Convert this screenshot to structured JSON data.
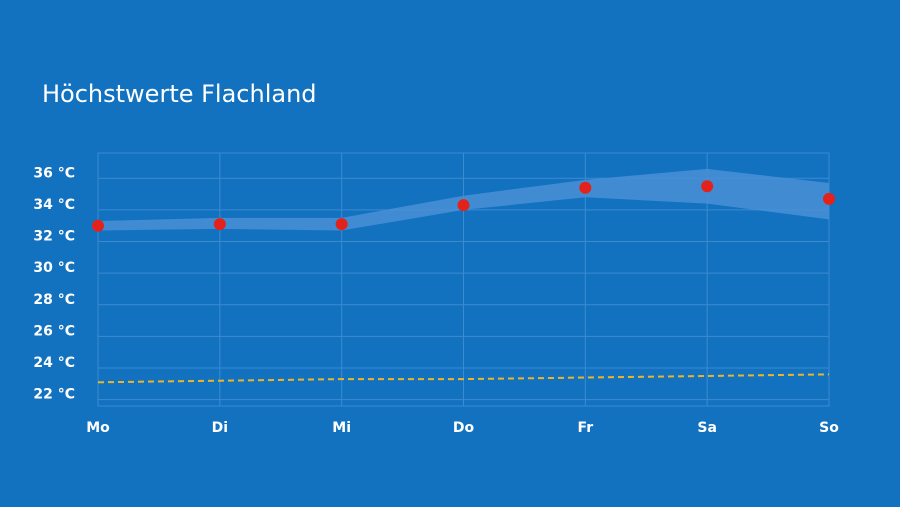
{
  "chart_data": {
    "type": "line",
    "title": "Höchstwerte Flachland",
    "categories": [
      "Mo",
      "Di",
      "Mi",
      "Do",
      "Fr",
      "Sa",
      "So"
    ],
    "ylim": [
      21.6,
      37.6
    ],
    "yticks": [
      {
        "value": 22,
        "label": "22 °C"
      },
      {
        "value": 24,
        "label": "24 °C"
      },
      {
        "value": 26,
        "label": "26 °C"
      },
      {
        "value": 28,
        "label": "28 °C"
      },
      {
        "value": 30,
        "label": "30 °C"
      },
      {
        "value": 32,
        "label": "32 °C"
      },
      {
        "value": 34,
        "label": "34 °C"
      },
      {
        "value": 36,
        "label": "36 °C"
      }
    ],
    "grid": true,
    "series": [
      {
        "type": "band",
        "color": "#4a8fd6",
        "upper": [
          33.3,
          33.5,
          33.5,
          34.9,
          35.9,
          36.6,
          35.7
        ],
        "lower": [
          32.7,
          32.8,
          32.7,
          34.0,
          34.8,
          34.4,
          33.4
        ]
      },
      {
        "type": "dashed",
        "color": "#e8b62c",
        "values": [
          23.1,
          23.2,
          23.3,
          23.3,
          23.4,
          23.5,
          23.6
        ]
      },
      {
        "type": "scatter",
        "color": "#e3231b",
        "values": [
          33.0,
          33.1,
          33.1,
          34.3,
          35.4,
          35.5,
          34.7
        ]
      }
    ]
  }
}
